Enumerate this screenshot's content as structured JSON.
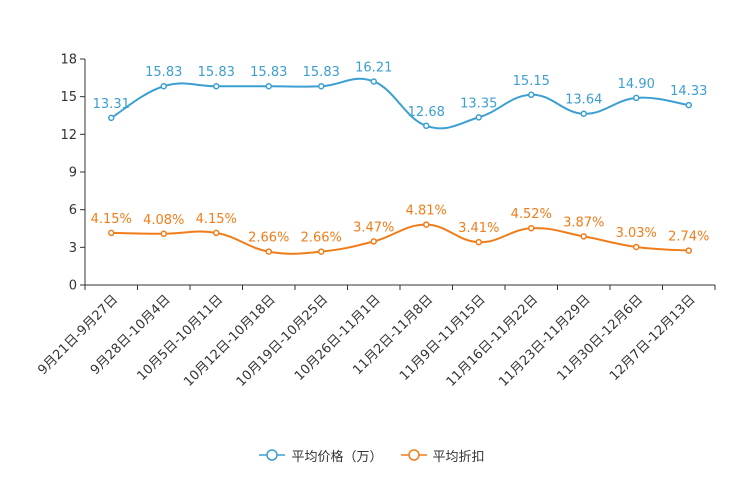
{
  "chart_data": {
    "type": "line",
    "categories": [
      "9月21日-9月27日",
      "9月28日-10月4日",
      "10月5日-10月11日",
      "10月12日-10月18日",
      "10月19日-10月25日",
      "10月26日-11月1日",
      "11月2日-11月8日",
      "11月9日-11月15日",
      "11月16日-11月22日",
      "11月23日-11月29日",
      "11月30日-12月6日",
      "12月7日-12月13日"
    ],
    "ylim": [
      0,
      18
    ],
    "yticks": [
      0,
      3,
      6,
      9,
      12,
      15,
      18
    ],
    "series": [
      {
        "name": "平均价格（万）",
        "color": "#3c9fd1",
        "values": [
          13.31,
          15.83,
          15.83,
          15.83,
          15.83,
          16.21,
          12.68,
          13.35,
          15.15,
          13.64,
          14.9,
          14.33
        ],
        "labels": [
          "13.31",
          "15.83",
          "15.83",
          "15.83",
          "15.83",
          "16.21",
          "12.68",
          "13.35",
          "15.15",
          "13.64",
          "14.90",
          "14.33"
        ]
      },
      {
        "name": "平均折扣",
        "color": "#f07d1a",
        "values": [
          4.15,
          4.08,
          4.15,
          2.66,
          2.66,
          3.47,
          4.81,
          3.41,
          4.52,
          3.87,
          3.03,
          2.74
        ],
        "labels": [
          "4.15%",
          "4.08%",
          "4.15%",
          "2.66%",
          "2.66%",
          "3.47%",
          "4.81%",
          "3.41%",
          "4.52%",
          "3.87%",
          "3.03%",
          "2.74%"
        ]
      }
    ],
    "legend_position": "bottom-center"
  }
}
